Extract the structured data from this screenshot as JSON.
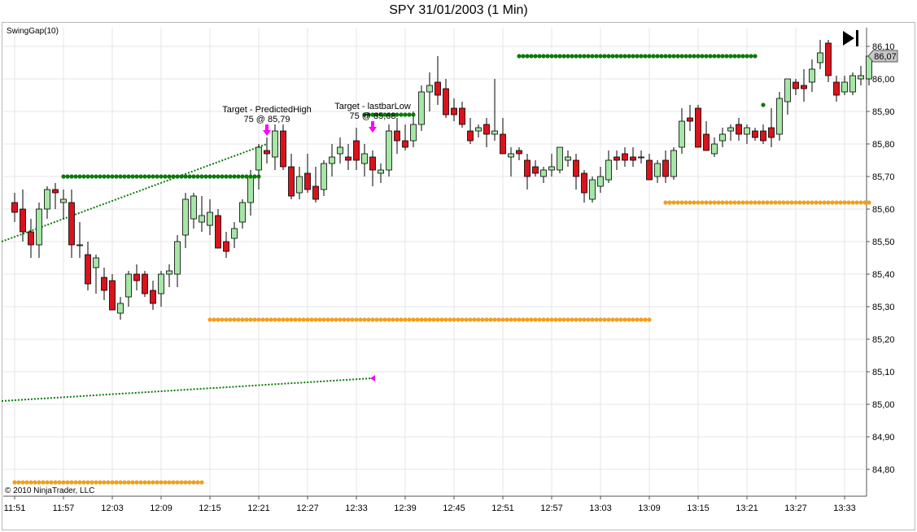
{
  "window": {
    "title": "SPY  31/01/2003 (1 Min)",
    "indicator_label": "SwingGap(10)",
    "copyright": "© 2010 NinjaTrader, LLC",
    "current_price_label": "86,07"
  },
  "colors": {
    "up_candle": "#a6e6a6",
    "down_candle": "#d9131c",
    "resistance_dot": "#0a7a0a",
    "support_dot": "#f0a020",
    "trendline": "#0a7a0a",
    "target_arrow": "#ff00ff",
    "grid": "#e4e4e4"
  },
  "chart_data": {
    "type": "candlestick",
    "symbol": "SPY",
    "date": "31/01/2003",
    "interval": "1 Min",
    "x_tick_labels": [
      "11:51",
      "11:57",
      "12:03",
      "12:09",
      "12:15",
      "12:21",
      "12:27",
      "12:33",
      "12:39",
      "12:45",
      "12:51",
      "12:57",
      "13:03",
      "13:09",
      "13:15",
      "13:21",
      "13:27",
      "13:33"
    ],
    "y_tick_labels": [
      "86,10",
      "86,00",
      "85,90",
      "85,80",
      "85,70",
      "85,60",
      "85,50",
      "85,40",
      "85,30",
      "85,20",
      "85,10",
      "85,00",
      "84,90",
      "84,80"
    ],
    "ylim": [
      84.72,
      86.14
    ],
    "candles": [
      {
        "i": 0,
        "o": 85.62,
        "h": 85.65,
        "l": 85.56,
        "c": 85.59
      },
      {
        "i": 1,
        "o": 85.6,
        "h": 85.66,
        "l": 85.5,
        "c": 85.53
      },
      {
        "i": 2,
        "o": 85.53,
        "h": 85.57,
        "l": 85.45,
        "c": 85.49
      },
      {
        "i": 3,
        "o": 85.49,
        "h": 85.62,
        "l": 85.45,
        "c": 85.6
      },
      {
        "i": 4,
        "o": 85.6,
        "h": 85.67,
        "l": 85.57,
        "c": 85.66
      },
      {
        "i": 5,
        "o": 85.66,
        "h": 85.68,
        "l": 85.6,
        "c": 85.65
      },
      {
        "i": 6,
        "o": 85.62,
        "h": 85.66,
        "l": 85.57,
        "c": 85.63
      },
      {
        "i": 7,
        "o": 85.62,
        "h": 85.66,
        "l": 85.45,
        "c": 85.49
      },
      {
        "i": 8,
        "o": 85.49,
        "h": 85.56,
        "l": 85.45,
        "c": 85.49
      },
      {
        "i": 9,
        "o": 85.46,
        "h": 85.5,
        "l": 85.35,
        "c": 85.37
      },
      {
        "i": 10,
        "o": 85.42,
        "h": 85.46,
        "l": 85.34,
        "c": 85.45
      },
      {
        "i": 11,
        "o": 85.39,
        "h": 85.42,
        "l": 85.32,
        "c": 85.35
      },
      {
        "i": 12,
        "o": 85.38,
        "h": 85.4,
        "l": 85.29,
        "c": 85.29
      },
      {
        "i": 13,
        "o": 85.28,
        "h": 85.33,
        "l": 85.26,
        "c": 85.31
      },
      {
        "i": 14,
        "o": 85.33,
        "h": 85.41,
        "l": 85.3,
        "c": 85.4
      },
      {
        "i": 15,
        "o": 85.4,
        "h": 85.43,
        "l": 85.35,
        "c": 85.38
      },
      {
        "i": 16,
        "o": 85.4,
        "h": 85.41,
        "l": 85.33,
        "c": 85.34
      },
      {
        "i": 17,
        "o": 85.35,
        "h": 85.38,
        "l": 85.29,
        "c": 85.31
      },
      {
        "i": 18,
        "o": 85.34,
        "h": 85.41,
        "l": 85.3,
        "c": 85.4
      },
      {
        "i": 19,
        "o": 85.4,
        "h": 85.43,
        "l": 85.36,
        "c": 85.41
      },
      {
        "i": 20,
        "o": 85.4,
        "h": 85.52,
        "l": 85.36,
        "c": 85.5
      },
      {
        "i": 21,
        "o": 85.52,
        "h": 85.65,
        "l": 85.48,
        "c": 85.63
      },
      {
        "i": 22,
        "o": 85.57,
        "h": 85.65,
        "l": 85.54,
        "c": 85.64
      },
      {
        "i": 23,
        "o": 85.56,
        "h": 85.64,
        "l": 85.53,
        "c": 85.58
      },
      {
        "i": 24,
        "o": 85.55,
        "h": 85.63,
        "l": 85.52,
        "c": 85.59
      },
      {
        "i": 25,
        "o": 85.58,
        "h": 85.6,
        "l": 85.48,
        "c": 85.48
      },
      {
        "i": 26,
        "o": 85.5,
        "h": 85.53,
        "l": 85.45,
        "c": 85.47
      },
      {
        "i": 27,
        "o": 85.51,
        "h": 85.56,
        "l": 85.48,
        "c": 85.54
      },
      {
        "i": 28,
        "o": 85.56,
        "h": 85.63,
        "l": 85.54,
        "c": 85.62
      },
      {
        "i": 29,
        "o": 85.62,
        "h": 85.72,
        "l": 85.58,
        "c": 85.7
      },
      {
        "i": 30,
        "o": 85.72,
        "h": 85.8,
        "l": 85.66,
        "c": 85.79
      },
      {
        "i": 31,
        "o": 85.78,
        "h": 85.82,
        "l": 85.74,
        "c": 85.77
      },
      {
        "i": 32,
        "o": 85.76,
        "h": 85.86,
        "l": 85.72,
        "c": 85.84
      },
      {
        "i": 33,
        "o": 85.84,
        "h": 85.86,
        "l": 85.72,
        "c": 85.73
      },
      {
        "i": 34,
        "o": 85.73,
        "h": 85.77,
        "l": 85.63,
        "c": 85.64
      },
      {
        "i": 35,
        "o": 85.65,
        "h": 85.73,
        "l": 85.63,
        "c": 85.7
      },
      {
        "i": 36,
        "o": 85.71,
        "h": 85.77,
        "l": 85.65,
        "c": 85.66
      },
      {
        "i": 37,
        "o": 85.67,
        "h": 85.73,
        "l": 85.62,
        "c": 85.63
      },
      {
        "i": 38,
        "o": 85.66,
        "h": 85.75,
        "l": 85.64,
        "c": 85.74
      },
      {
        "i": 39,
        "o": 85.74,
        "h": 85.8,
        "l": 85.7,
        "c": 85.76
      },
      {
        "i": 40,
        "o": 85.77,
        "h": 85.82,
        "l": 85.74,
        "c": 85.79
      },
      {
        "i": 41,
        "o": 85.76,
        "h": 85.8,
        "l": 85.72,
        "c": 85.75
      },
      {
        "i": 42,
        "o": 85.81,
        "h": 85.85,
        "l": 85.72,
        "c": 85.75
      },
      {
        "i": 43,
        "o": 85.74,
        "h": 85.8,
        "l": 85.7,
        "c": 85.77
      },
      {
        "i": 44,
        "o": 85.76,
        "h": 85.78,
        "l": 85.67,
        "c": 85.72
      },
      {
        "i": 45,
        "o": 85.71,
        "h": 85.74,
        "l": 85.68,
        "c": 85.72
      },
      {
        "i": 46,
        "o": 85.72,
        "h": 85.86,
        "l": 85.7,
        "c": 85.84
      },
      {
        "i": 47,
        "o": 85.84,
        "h": 85.88,
        "l": 85.77,
        "c": 85.81
      },
      {
        "i": 48,
        "o": 85.81,
        "h": 85.86,
        "l": 85.78,
        "c": 85.79
      },
      {
        "i": 49,
        "o": 85.81,
        "h": 85.9,
        "l": 85.79,
        "c": 85.86
      },
      {
        "i": 50,
        "o": 85.86,
        "h": 85.98,
        "l": 85.84,
        "c": 85.96
      },
      {
        "i": 51,
        "o": 85.96,
        "h": 86.02,
        "l": 85.9,
        "c": 85.98
      },
      {
        "i": 52,
        "o": 85.99,
        "h": 86.07,
        "l": 85.92,
        "c": 85.95
      },
      {
        "i": 53,
        "o": 85.97,
        "h": 86.0,
        "l": 85.88,
        "c": 85.89
      },
      {
        "i": 54,
        "o": 85.91,
        "h": 85.94,
        "l": 85.87,
        "c": 85.89
      },
      {
        "i": 55,
        "o": 85.91,
        "h": 85.93,
        "l": 85.85,
        "c": 85.86
      },
      {
        "i": 56,
        "o": 85.84,
        "h": 85.88,
        "l": 85.8,
        "c": 85.81
      },
      {
        "i": 57,
        "o": 85.84,
        "h": 85.86,
        "l": 85.82,
        "c": 85.85
      },
      {
        "i": 58,
        "o": 85.86,
        "h": 85.88,
        "l": 85.79,
        "c": 85.83
      },
      {
        "i": 59,
        "o": 85.83,
        "h": 86.0,
        "l": 85.81,
        "c": 85.84
      },
      {
        "i": 60,
        "o": 85.83,
        "h": 85.88,
        "l": 85.77,
        "c": 85.77
      },
      {
        "i": 61,
        "o": 85.76,
        "h": 85.79,
        "l": 85.7,
        "c": 85.77
      },
      {
        "i": 62,
        "o": 85.78,
        "h": 85.79,
        "l": 85.75,
        "c": 85.77
      },
      {
        "i": 63,
        "o": 85.75,
        "h": 85.77,
        "l": 85.66,
        "c": 85.7
      },
      {
        "i": 64,
        "o": 85.73,
        "h": 85.75,
        "l": 85.7,
        "c": 85.71
      },
      {
        "i": 65,
        "o": 85.7,
        "h": 85.73,
        "l": 85.68,
        "c": 85.72
      },
      {
        "i": 66,
        "o": 85.72,
        "h": 85.77,
        "l": 85.7,
        "c": 85.73
      },
      {
        "i": 67,
        "o": 85.72,
        "h": 85.79,
        "l": 85.71,
        "c": 85.79
      },
      {
        "i": 68,
        "o": 85.75,
        "h": 85.78,
        "l": 85.73,
        "c": 85.76
      },
      {
        "i": 69,
        "o": 85.75,
        "h": 85.77,
        "l": 85.66,
        "c": 85.7
      },
      {
        "i": 70,
        "o": 85.71,
        "h": 85.72,
        "l": 85.62,
        "c": 85.65
      },
      {
        "i": 71,
        "o": 85.63,
        "h": 85.7,
        "l": 85.62,
        "c": 85.69
      },
      {
        "i": 72,
        "o": 85.67,
        "h": 85.73,
        "l": 85.65,
        "c": 85.7
      },
      {
        "i": 73,
        "o": 85.69,
        "h": 85.78,
        "l": 85.68,
        "c": 85.75
      },
      {
        "i": 74,
        "o": 85.76,
        "h": 85.78,
        "l": 85.72,
        "c": 85.75
      },
      {
        "i": 75,
        "o": 85.77,
        "h": 85.79,
        "l": 85.73,
        "c": 85.75
      },
      {
        "i": 76,
        "o": 85.76,
        "h": 85.79,
        "l": 85.73,
        "c": 85.75
      },
      {
        "i": 77,
        "o": 85.76,
        "h": 85.78,
        "l": 85.74,
        "c": 85.76
      },
      {
        "i": 78,
        "o": 85.75,
        "h": 85.77,
        "l": 85.69,
        "c": 85.69
      },
      {
        "i": 79,
        "o": 85.7,
        "h": 85.75,
        "l": 85.68,
        "c": 85.74
      },
      {
        "i": 80,
        "o": 85.75,
        "h": 85.78,
        "l": 85.68,
        "c": 85.7
      },
      {
        "i": 81,
        "o": 85.7,
        "h": 85.79,
        "l": 85.69,
        "c": 85.78
      },
      {
        "i": 82,
        "o": 85.79,
        "h": 85.91,
        "l": 85.77,
        "c": 85.87
      },
      {
        "i": 83,
        "o": 85.88,
        "h": 85.92,
        "l": 85.84,
        "c": 85.87
      },
      {
        "i": 84,
        "o": 85.91,
        "h": 85.92,
        "l": 85.79,
        "c": 85.79
      },
      {
        "i": 85,
        "o": 85.83,
        "h": 85.87,
        "l": 85.78,
        "c": 85.78
      },
      {
        "i": 86,
        "o": 85.77,
        "h": 85.82,
        "l": 85.76,
        "c": 85.8
      },
      {
        "i": 87,
        "o": 85.81,
        "h": 85.85,
        "l": 85.79,
        "c": 85.83
      },
      {
        "i": 88,
        "o": 85.84,
        "h": 85.86,
        "l": 85.81,
        "c": 85.85
      },
      {
        "i": 89,
        "o": 85.86,
        "h": 85.88,
        "l": 85.81,
        "c": 85.83
      },
      {
        "i": 90,
        "o": 85.83,
        "h": 85.86,
        "l": 85.8,
        "c": 85.85
      },
      {
        "i": 91,
        "o": 85.84,
        "h": 85.85,
        "l": 85.81,
        "c": 85.82
      },
      {
        "i": 92,
        "o": 85.84,
        "h": 85.86,
        "l": 85.8,
        "c": 85.81
      },
      {
        "i": 93,
        "o": 85.85,
        "h": 85.91,
        "l": 85.79,
        "c": 85.82
      },
      {
        "i": 94,
        "o": 85.83,
        "h": 85.96,
        "l": 85.81,
        "c": 85.94
      },
      {
        "i": 95,
        "o": 85.93,
        "h": 86.0,
        "l": 85.89,
        "c": 86.0
      },
      {
        "i": 96,
        "o": 85.99,
        "h": 86.0,
        "l": 85.95,
        "c": 85.97
      },
      {
        "i": 97,
        "o": 85.98,
        "h": 86.03,
        "l": 85.93,
        "c": 85.97
      },
      {
        "i": 98,
        "o": 85.99,
        "h": 86.06,
        "l": 85.96,
        "c": 86.03
      },
      {
        "i": 99,
        "o": 86.05,
        "h": 86.12,
        "l": 86.03,
        "c": 86.08
      },
      {
        "i": 100,
        "o": 86.11,
        "h": 86.12,
        "l": 85.99,
        "c": 86.01
      },
      {
        "i": 101,
        "o": 85.99,
        "h": 86.01,
        "l": 85.93,
        "c": 85.95
      },
      {
        "i": 102,
        "o": 85.96,
        "h": 86.01,
        "l": 85.95,
        "c": 85.99
      },
      {
        "i": 103,
        "o": 85.96,
        "h": 86.02,
        "l": 85.95,
        "c": 86.01
      },
      {
        "i": 104,
        "o": 86.0,
        "h": 86.04,
        "l": 85.98,
        "c": 86.01
      },
      {
        "i": 105,
        "o": 86.0,
        "h": 86.07,
        "l": 85.98,
        "c": 86.07
      }
    ],
    "swing_gap_levels": [
      {
        "kind": "resistance",
        "price": 85.7,
        "from": 6,
        "to": 30
      },
      {
        "kind": "support",
        "price": 85.26,
        "from": 24,
        "to": 78
      },
      {
        "kind": "support",
        "price": 84.76,
        "from": 0,
        "to": 23
      },
      {
        "kind": "resistance",
        "price": 85.89,
        "from": 43,
        "to": 49
      },
      {
        "kind": "resistance",
        "price": 86.07,
        "from": 62,
        "to": 91
      },
      {
        "kind": "support",
        "price": 85.62,
        "from": 80,
        "to": 105
      },
      {
        "kind": "resistance",
        "price": 85.92,
        "from": 92,
        "to": 92
      }
    ],
    "trendlines": [
      {
        "x1": -1,
        "y1": 85.5,
        "x2": 31,
        "y2": 85.8
      },
      {
        "x1": -1,
        "y1": 85.01,
        "x2": 44,
        "y2": 85.08
      }
    ],
    "annotations": [
      {
        "line1": "Target - PredictedHigh",
        "line2": "75 @ 85,79",
        "bar": 31,
        "arrow_price": 85.83
      },
      {
        "line1": "Target - lastbarLow",
        "line2": "75 @ 85,68",
        "bar": 44,
        "arrow_price": 85.84
      }
    ],
    "grid": true
  }
}
